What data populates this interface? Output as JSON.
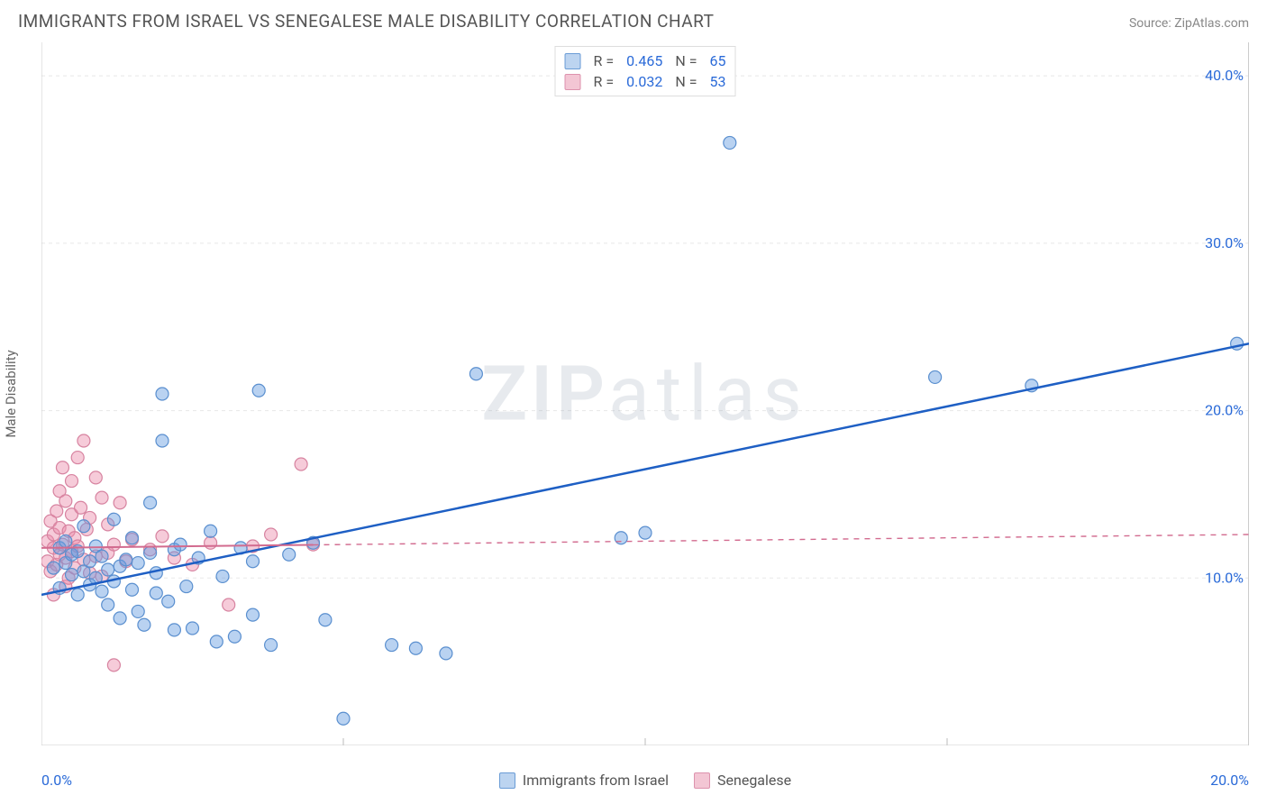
{
  "header": {
    "title": "IMMIGRANTS FROM ISRAEL VS SENEGALESE MALE DISABILITY CORRELATION CHART",
    "source_label": "Source: ",
    "source_name": "ZipAtlas.com"
  },
  "watermark": {
    "left": "ZIP",
    "right": "atlas"
  },
  "chart": {
    "type": "scatter",
    "ylabel": "Male Disability",
    "background_color": "#ffffff",
    "grid_color": "#e8e8e8",
    "axis_color": "#cccccc",
    "tick_color": "#bbbbbb",
    "label_color": "#2a6ad8",
    "xlim": [
      0,
      20
    ],
    "ylim": [
      0,
      42
    ],
    "xticks": [
      0,
      5,
      10,
      15,
      20
    ],
    "xtick_labels": [
      "0.0%",
      "",
      "",
      "",
      "20.0%"
    ],
    "yticks": [
      10,
      20,
      30,
      40
    ],
    "ytick_labels": [
      "10.0%",
      "20.0%",
      "30.0%",
      "40.0%"
    ],
    "marker_radius": 7,
    "marker_stroke_width": 1.2,
    "series": [
      {
        "name": "Immigrants from Israel",
        "fill_color": "rgba(99,155,224,0.45)",
        "stroke_color": "#5a8fcf",
        "legend_fill": "#bcd4f0",
        "legend_stroke": "#6a9cd6",
        "R": "0.465",
        "N": "65",
        "trend": {
          "x1": 0,
          "y1": 9.0,
          "x2": 20,
          "y2": 24.0,
          "solid_until_x": 20,
          "color": "#1e5fc4",
          "width": 2.5
        },
        "points": [
          [
            0.2,
            10.6
          ],
          [
            0.3,
            9.4
          ],
          [
            0.3,
            11.8
          ],
          [
            0.4,
            10.9
          ],
          [
            0.4,
            12.2
          ],
          [
            0.5,
            11.4
          ],
          [
            0.5,
            10.2
          ],
          [
            0.6,
            9.0
          ],
          [
            0.6,
            11.6
          ],
          [
            0.7,
            10.4
          ],
          [
            0.7,
            13.1
          ],
          [
            0.8,
            11.0
          ],
          [
            0.8,
            9.6
          ],
          [
            0.9,
            10.0
          ],
          [
            0.9,
            11.9
          ],
          [
            1.0,
            9.2
          ],
          [
            1.0,
            11.3
          ],
          [
            1.1,
            10.5
          ],
          [
            1.1,
            8.4
          ],
          [
            1.2,
            13.5
          ],
          [
            1.2,
            9.8
          ],
          [
            1.3,
            10.7
          ],
          [
            1.3,
            7.6
          ],
          [
            1.4,
            11.1
          ],
          [
            1.5,
            9.3
          ],
          [
            1.5,
            12.4
          ],
          [
            1.6,
            8.0
          ],
          [
            1.6,
            10.9
          ],
          [
            1.7,
            7.2
          ],
          [
            1.8,
            11.5
          ],
          [
            1.8,
            14.5
          ],
          [
            1.9,
            9.1
          ],
          [
            1.9,
            10.3
          ],
          [
            2.0,
            18.2
          ],
          [
            2.0,
            21.0
          ],
          [
            2.1,
            8.6
          ],
          [
            2.2,
            11.7
          ],
          [
            2.2,
            6.9
          ],
          [
            2.3,
            12.0
          ],
          [
            2.4,
            9.5
          ],
          [
            2.5,
            7.0
          ],
          [
            2.6,
            11.2
          ],
          [
            2.8,
            12.8
          ],
          [
            2.9,
            6.2
          ],
          [
            3.0,
            10.1
          ],
          [
            3.2,
            6.5
          ],
          [
            3.3,
            11.8
          ],
          [
            3.5,
            11.0
          ],
          [
            3.5,
            7.8
          ],
          [
            3.6,
            21.2
          ],
          [
            3.8,
            6.0
          ],
          [
            4.1,
            11.4
          ],
          [
            4.5,
            12.1
          ],
          [
            4.7,
            7.5
          ],
          [
            5.0,
            1.6
          ],
          [
            5.8,
            6.0
          ],
          [
            6.2,
            5.8
          ],
          [
            6.7,
            5.5
          ],
          [
            7.2,
            22.2
          ],
          [
            9.6,
            12.4
          ],
          [
            10.0,
            12.7
          ],
          [
            11.4,
            36.0
          ],
          [
            14.8,
            22.0
          ],
          [
            16.4,
            21.5
          ],
          [
            19.8,
            24.0
          ]
        ]
      },
      {
        "name": "Senegalese",
        "fill_color": "rgba(236,140,170,0.45)",
        "stroke_color": "#d783a0",
        "legend_fill": "#f3c6d4",
        "legend_stroke": "#dd92ad",
        "R": "0.032",
        "N": "53",
        "trend": {
          "x1": 0,
          "y1": 11.8,
          "x2": 20,
          "y2": 12.6,
          "solid_until_x": 4.5,
          "color": "#d26b8f",
          "width": 2
        },
        "points": [
          [
            0.1,
            11.0
          ],
          [
            0.1,
            12.2
          ],
          [
            0.15,
            10.4
          ],
          [
            0.15,
            13.4
          ],
          [
            0.2,
            11.8
          ],
          [
            0.2,
            9.0
          ],
          [
            0.2,
            12.6
          ],
          [
            0.25,
            14.0
          ],
          [
            0.25,
            10.8
          ],
          [
            0.3,
            11.4
          ],
          [
            0.3,
            15.2
          ],
          [
            0.3,
            13.0
          ],
          [
            0.35,
            12.0
          ],
          [
            0.35,
            16.6
          ],
          [
            0.4,
            14.6
          ],
          [
            0.4,
            11.2
          ],
          [
            0.4,
            9.5
          ],
          [
            0.45,
            12.8
          ],
          [
            0.45,
            10.0
          ],
          [
            0.5,
            15.8
          ],
          [
            0.5,
            11.6
          ],
          [
            0.5,
            13.8
          ],
          [
            0.55,
            10.6
          ],
          [
            0.55,
            12.4
          ],
          [
            0.6,
            11.9
          ],
          [
            0.6,
            17.2
          ],
          [
            0.65,
            14.2
          ],
          [
            0.7,
            18.2
          ],
          [
            0.7,
            11.1
          ],
          [
            0.75,
            12.9
          ],
          [
            0.8,
            10.3
          ],
          [
            0.8,
            13.6
          ],
          [
            0.9,
            11.3
          ],
          [
            0.9,
            16.0
          ],
          [
            1.0,
            14.8
          ],
          [
            1.0,
            10.1
          ],
          [
            1.1,
            11.5
          ],
          [
            1.1,
            13.2
          ],
          [
            1.2,
            4.8
          ],
          [
            1.2,
            12.0
          ],
          [
            1.3,
            14.5
          ],
          [
            1.4,
            11.0
          ],
          [
            1.5,
            12.3
          ],
          [
            1.8,
            11.7
          ],
          [
            2.0,
            12.5
          ],
          [
            2.2,
            11.2
          ],
          [
            2.5,
            10.8
          ],
          [
            2.8,
            12.1
          ],
          [
            3.1,
            8.4
          ],
          [
            3.5,
            11.9
          ],
          [
            3.8,
            12.6
          ],
          [
            4.3,
            16.8
          ],
          [
            4.5,
            12.0
          ]
        ]
      }
    ],
    "bottom_legend": [
      {
        "label": "Immigrants from Israel",
        "fill": "#bcd4f0",
        "stroke": "#6a9cd6"
      },
      {
        "label": "Senegalese",
        "fill": "#f3c6d4",
        "stroke": "#dd92ad"
      }
    ]
  }
}
